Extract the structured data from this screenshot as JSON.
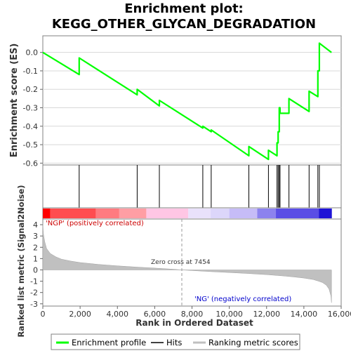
{
  "chart_data": [
    {
      "type": "line",
      "title_line1": "Enrichment plot:",
      "title_line2": "KEGG_OTHER_GLYCAN_DEGRADATION",
      "ylabel": "Enrichment score (ES)",
      "yticks": [
        "0.0",
        "-0.1",
        "-0.2",
        "-0.3",
        "-0.4",
        "-0.5",
        "-0.6"
      ],
      "ylim": [
        -0.61,
        0.09
      ],
      "xlim": [
        0,
        16000
      ],
      "line_color": "#00ff00",
      "series": [
        {
          "x": [
            0,
            1950,
            1950,
            5060,
            5060,
            6250,
            6250,
            8580,
            8580,
            9030,
            9030,
            11050,
            11050,
            12100,
            12100,
            12560,
            12560,
            12620,
            12620,
            12680,
            12680,
            12720,
            12720,
            13200,
            13200,
            14280,
            14280,
            14750,
            14750,
            14830,
            14830,
            15480
          ],
          "y": [
            0.0,
            -0.12,
            -0.03,
            -0.23,
            -0.2,
            -0.29,
            -0.26,
            -0.41,
            -0.4,
            -0.43,
            -0.42,
            -0.56,
            -0.51,
            -0.58,
            -0.53,
            -0.56,
            -0.49,
            -0.49,
            -0.43,
            -0.43,
            -0.3,
            -0.3,
            -0.33,
            -0.33,
            -0.25,
            -0.32,
            -0.21,
            -0.24,
            -0.1,
            -0.1,
            0.05,
            0.0
          ]
        }
      ]
    },
    {
      "type": "hits",
      "hits": [
        1950,
        5060,
        6250,
        8580,
        9030,
        11050,
        12100,
        12560,
        12620,
        12680,
        12720,
        13200,
        14280,
        14750,
        14830
      ],
      "color_bands": [
        {
          "from": 0,
          "to": 400,
          "color": "#ff0000"
        },
        {
          "from": 400,
          "to": 2850,
          "color": "#ff4d50"
        },
        {
          "from": 2850,
          "to": 4100,
          "color": "#ff7b80"
        },
        {
          "from": 4100,
          "to": 5550,
          "color": "#ff9ea4"
        },
        {
          "from": 5550,
          "to": 7800,
          "color": "#ffc6e4"
        },
        {
          "from": 7800,
          "to": 9000,
          "color": "#e9e1fb"
        },
        {
          "from": 9000,
          "to": 10000,
          "color": "#dcd6fa"
        },
        {
          "from": 10000,
          "to": 11500,
          "color": "#c6bcf7"
        },
        {
          "from": 11500,
          "to": 12500,
          "color": "#8c82ee"
        },
        {
          "from": 12500,
          "to": 14800,
          "color": "#5a4ee5"
        },
        {
          "from": 14800,
          "to": 15500,
          "color": "#1f14d6"
        }
      ]
    },
    {
      "type": "area",
      "ylabel": "Ranked list metric (Signal2Noise)",
      "xlabel": "Rank in Ordered Dataset",
      "yticks": [
        "4",
        "3",
        "2",
        "1",
        "0",
        "-1",
        "-2",
        "-3"
      ],
      "xticks": [
        "0",
        "2,000",
        "4,000",
        "6,000",
        "8,000",
        "10,000",
        "12,000",
        "14,000",
        "16,000"
      ],
      "ylim": [
        -3.2,
        4.5
      ],
      "zero_cross": 7454,
      "zero_cross_label": "Zero cross at 7454",
      "pos_label": "'NGP' (positively correlated)",
      "neg_label": "'NG' (negatively correlated)",
      "fill_color": "#c0c0c0",
      "x": [
        0,
        30,
        100,
        200,
        400,
        700,
        1000,
        1500,
        2000,
        3000,
        4000,
        5000,
        6000,
        7000,
        7454,
        8000,
        9000,
        10000,
        11000,
        12000,
        13000,
        13500,
        14000,
        14500,
        14800,
        15000,
        15200,
        15350,
        15450,
        15480
      ],
      "y": [
        4.1,
        3.2,
        2.5,
        1.9,
        1.45,
        1.15,
        0.95,
        0.78,
        0.65,
        0.48,
        0.36,
        0.25,
        0.16,
        0.06,
        0.0,
        -0.06,
        -0.15,
        -0.23,
        -0.32,
        -0.42,
        -0.55,
        -0.63,
        -0.72,
        -0.85,
        -1.0,
        -1.12,
        -1.35,
        -1.7,
        -2.3,
        -2.9
      ]
    }
  ],
  "legend": {
    "items": [
      {
        "label": "Enrichment profile",
        "color": "#00ff00"
      },
      {
        "label": "Hits",
        "color": "#000000"
      },
      {
        "label": "Ranking metric scores",
        "color": "#c0c0c0"
      }
    ]
  }
}
